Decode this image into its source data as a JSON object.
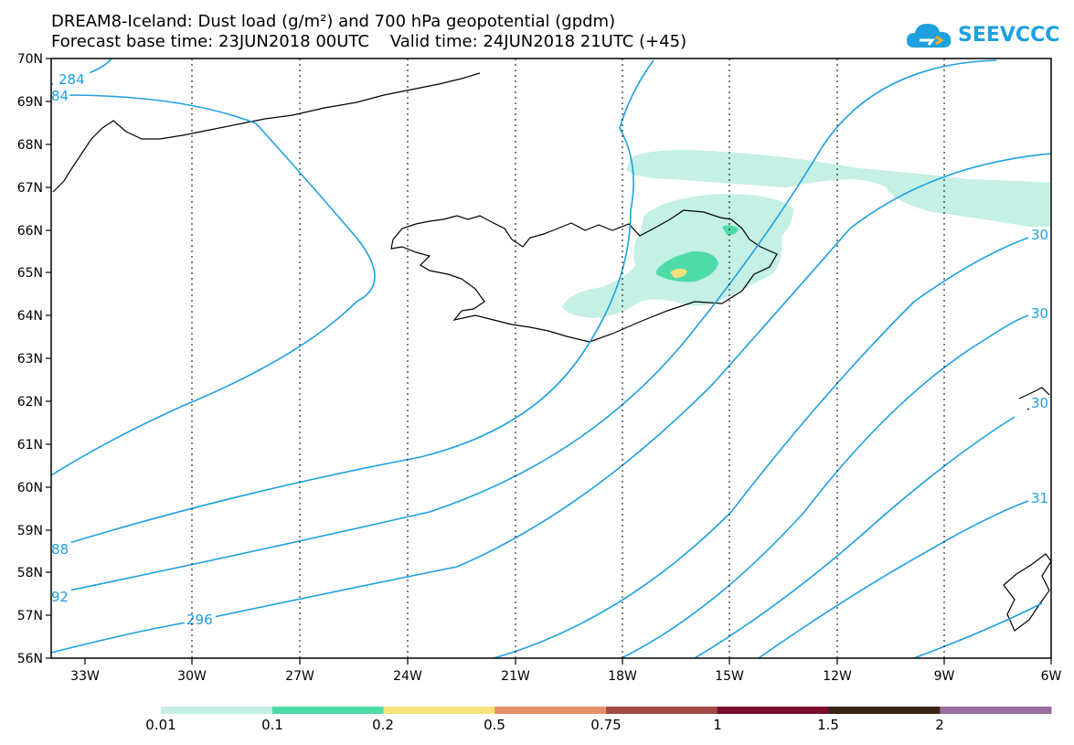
{
  "title": {
    "line1": "DREAM8-Iceland: Dust load (g/m²) and 700 hPa geopotential (gpdm)",
    "line2": "Forecast base time: 23JUN2018 00UTC    Valid time: 24JUN2018 21UTC (+45)"
  },
  "logo": {
    "text": "SEEVCCC",
    "icon": "cloud-icon"
  },
  "axes": {
    "lat_labels": [
      "70N",
      "69N",
      "68N",
      "67N",
      "66N",
      "65N",
      "64N",
      "63N",
      "62N",
      "61N",
      "60N",
      "59N",
      "58N",
      "57N",
      "56N"
    ],
    "lon_labels": [
      "33W",
      "30W",
      "27W",
      "24W",
      "21W",
      "18W",
      "15W",
      "12W",
      "9W",
      "6W"
    ]
  },
  "contour_labels": [
    "284",
    "84",
    "88",
    "92",
    "296",
    "30",
    "30",
    "30",
    "31"
  ],
  "colorbar": {
    "labels": [
      "0.01",
      "0.1",
      "0.2",
      "0.5",
      "0.75",
      "1",
      "1.5",
      "2"
    ],
    "colors": [
      "#c4f0e6",
      "#4fdba8",
      "#f5e27a",
      "#e8906a",
      "#a04b45",
      "#7b0b2e",
      "#3a2417",
      "#9a6d9e"
    ]
  },
  "colors": {
    "contour": "#1fa0e0",
    "dust_light": "#c4f0e6",
    "dust_mid": "#4fdba8",
    "dust_high": "#f5e27a"
  }
}
